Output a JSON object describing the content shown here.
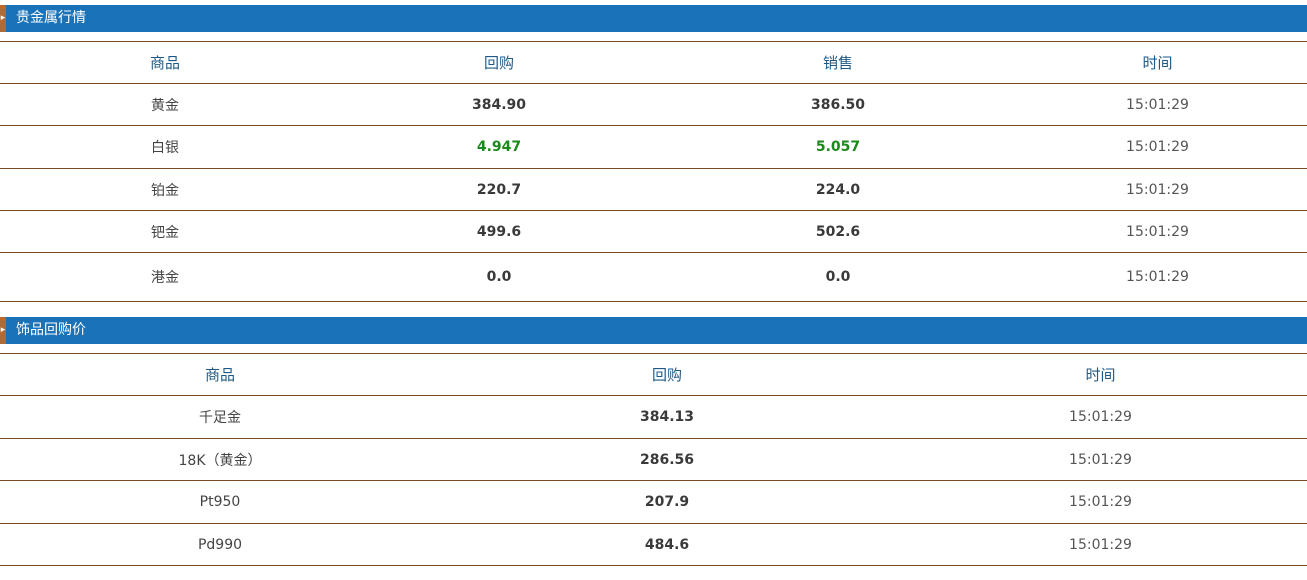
{
  "section1": {
    "title": "贵金属行情",
    "headers": [
      "商品",
      "回购",
      "销售",
      "时间"
    ],
    "rows": [
      {
        "name": "黄金",
        "buy": "384.90",
        "sell": "386.50",
        "time": "15:01:29",
        "highlight": false
      },
      {
        "name": "白银",
        "buy": "4.947",
        "sell": "5.057",
        "time": "15:01:29",
        "highlight": true
      },
      {
        "name": "铂金",
        "buy": "220.7",
        "sell": "224.0",
        "time": "15:01:29",
        "highlight": false
      },
      {
        "name": "钯金",
        "buy": "499.6",
        "sell": "502.6",
        "time": "15:01:29",
        "highlight": false
      },
      {
        "name": "港金",
        "buy": "0.0",
        "sell": "0.0",
        "time": "15:01:29",
        "highlight": false
      }
    ]
  },
  "section2": {
    "title": "饰品回购价",
    "headers": [
      "商品",
      "回购",
      "时间"
    ],
    "rows": [
      {
        "name": "千足金",
        "buy": "384.13",
        "time": "15:01:29"
      },
      {
        "name": "18K（黄金）",
        "buy": "286.56",
        "time": "15:01:29"
      },
      {
        "name": "Pt950",
        "buy": "207.9",
        "time": "15:01:29"
      },
      {
        "name": "Pd990",
        "buy": "484.6",
        "time": "15:01:29"
      }
    ]
  },
  "colors": {
    "header_bar": "#1a72b8",
    "marker": "#b06b36",
    "row_border": "#7a4a22",
    "highlight_value": "#1a8a1a",
    "header_text": "#1f5a86"
  },
  "icons": {
    "section_marker": "arrow-right-icon"
  }
}
